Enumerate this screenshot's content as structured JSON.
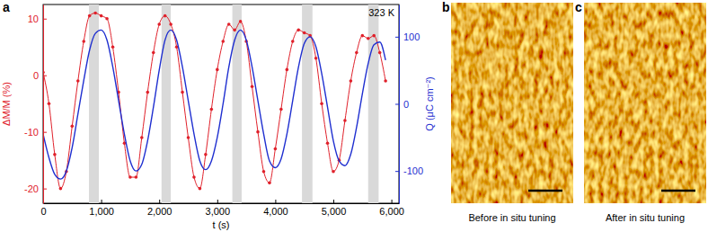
{
  "chart_data": {
    "type": "line",
    "title": "a",
    "annotations": [
      "323 K"
    ],
    "x_label": "t (s)",
    "y_label": "ΔM/M (%)",
    "y2_label": "Q (μC cm⁻²)",
    "x": [
      0,
      100,
      200,
      300,
      400,
      500,
      600,
      700,
      800,
      900,
      1000,
      1100,
      1200,
      1300,
      1400,
      1500,
      1600,
      1700,
      1800,
      1900,
      2000,
      2100,
      2200,
      2300,
      2400,
      2500,
      2600,
      2700,
      2800,
      2900,
      3000,
      3100,
      3200,
      3300,
      3400,
      3500,
      3600,
      3700,
      3800,
      3900,
      4000,
      4100,
      4200,
      4300,
      4400,
      4500,
      4600,
      4700,
      4800,
      4900,
      5000,
      5100,
      5200,
      5300,
      5400,
      5500,
      5600,
      5700,
      5800,
      5900
    ],
    "xlim": [
      0,
      6130
    ],
    "xticks": [
      0,
      {
        "value": 1000,
        "label": "1,000"
      },
      {
        "value": 2000,
        "label": "2,000"
      },
      {
        "value": 3000,
        "label": "3,000"
      },
      {
        "value": 4000,
        "label": "4,000"
      },
      {
        "value": 5000,
        "label": "5,000"
      },
      {
        "value": 6000,
        "label": "6,000"
      }
    ],
    "ylim": [
      -22.6,
      12.5
    ],
    "yticks": [
      -20,
      -10,
      0,
      10
    ],
    "y2lim": [
      -148,
      148
    ],
    "y2ticks": [
      -100,
      0,
      100
    ],
    "shaded_regions": [
      [
        790,
        960
      ],
      [
        2040,
        2200
      ],
      [
        3260,
        3420
      ],
      [
        4460,
        4640
      ],
      [
        5600,
        5780
      ]
    ],
    "series": [
      {
        "color": "#e0202a",
        "marker": "circle",
        "values": [
          0.5,
          -5,
          -14,
          -20,
          -17,
          -9,
          -1,
          6,
          10.5,
          11,
          10.5,
          10,
          5,
          -3,
          -12,
          -18,
          -18,
          -11,
          -3,
          4,
          9,
          10.5,
          9,
          5,
          -3,
          -11,
          -18,
          -20,
          -14,
          -6,
          1,
          6,
          9,
          8,
          9.5,
          6,
          -2,
          -10,
          -17,
          -19,
          -13,
          -6,
          1,
          6,
          8,
          7.5,
          7,
          3,
          -5,
          -12,
          -17,
          -15,
          -8,
          -1,
          4,
          7,
          6.5,
          7,
          4,
          -1
        ]
      },
      {
        "color": "#1f2fd0",
        "axis": "y2",
        "values": [
          -45,
          -80,
          -105,
          -112,
          -100,
          -65,
          -15,
          35,
          80,
          105,
          110,
          95,
          55,
          5,
          -45,
          -85,
          -100,
          -90,
          -55,
          -5,
          50,
          95,
          110,
          95,
          55,
          5,
          -45,
          -85,
          -98,
          -85,
          -50,
          0,
          55,
          95,
          110,
          95,
          55,
          5,
          -45,
          -85,
          -95,
          -82,
          -45,
          5,
          55,
          90,
          100,
          85,
          45,
          -5,
          -55,
          -85,
          -92,
          -75,
          -35,
          15,
          60,
          88,
          92,
          65
        ]
      }
    ]
  },
  "panels": [
    {
      "label": "b",
      "caption": "Before in situ tuning"
    },
    {
      "label": "c",
      "caption": "After in situ tuning"
    }
  ]
}
